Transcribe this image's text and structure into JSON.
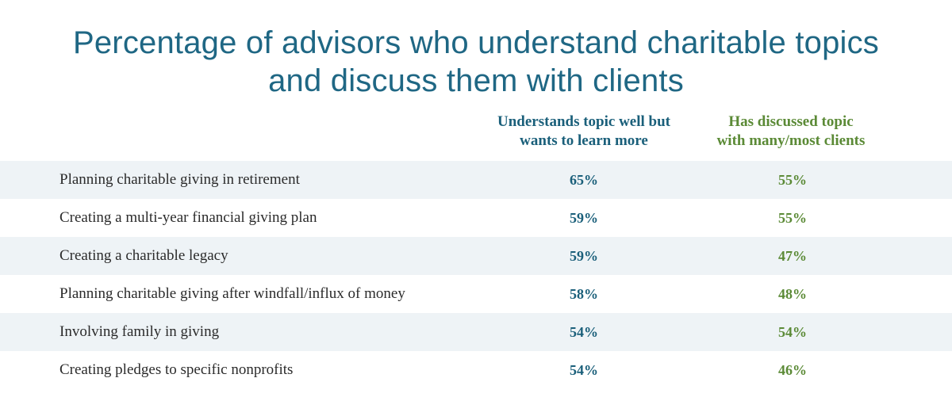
{
  "chart_data": {
    "type": "table",
    "title_lines": [
      "Percentage of advisors who understand charitable topics",
      "and discuss them with clients"
    ],
    "columns": [
      {
        "header_lines": [
          "Understands topic well but",
          "wants to learn more"
        ],
        "color": "#1a5f7a"
      },
      {
        "header_lines": [
          "Has discussed topic",
          "with many/most clients"
        ],
        "color": "#5b8a36"
      }
    ],
    "rows": [
      {
        "label": "Planning charitable giving in retirement",
        "values": [
          "65%",
          "55%"
        ],
        "numeric": [
          65,
          55
        ]
      },
      {
        "label": "Creating a multi-year financial giving plan",
        "values": [
          "59%",
          "55%"
        ],
        "numeric": [
          59,
          55
        ]
      },
      {
        "label": "Creating a charitable legacy",
        "values": [
          "59%",
          "47%"
        ],
        "numeric": [
          59,
          47
        ]
      },
      {
        "label": "Planning charitable giving after windfall/influx of money",
        "values": [
          "58%",
          "48%"
        ],
        "numeric": [
          58,
          48
        ]
      },
      {
        "label": "Involving family in giving",
        "values": [
          "54%",
          "54%"
        ],
        "numeric": [
          54,
          54
        ]
      },
      {
        "label": "Creating pledges to specific nonprofits",
        "values": [
          "54%",
          "46%"
        ],
        "numeric": [
          54,
          46
        ]
      }
    ]
  },
  "colors": {
    "title": "#1f6784",
    "row_shade": "#eef3f6",
    "label_text": "#2b2b2b"
  }
}
